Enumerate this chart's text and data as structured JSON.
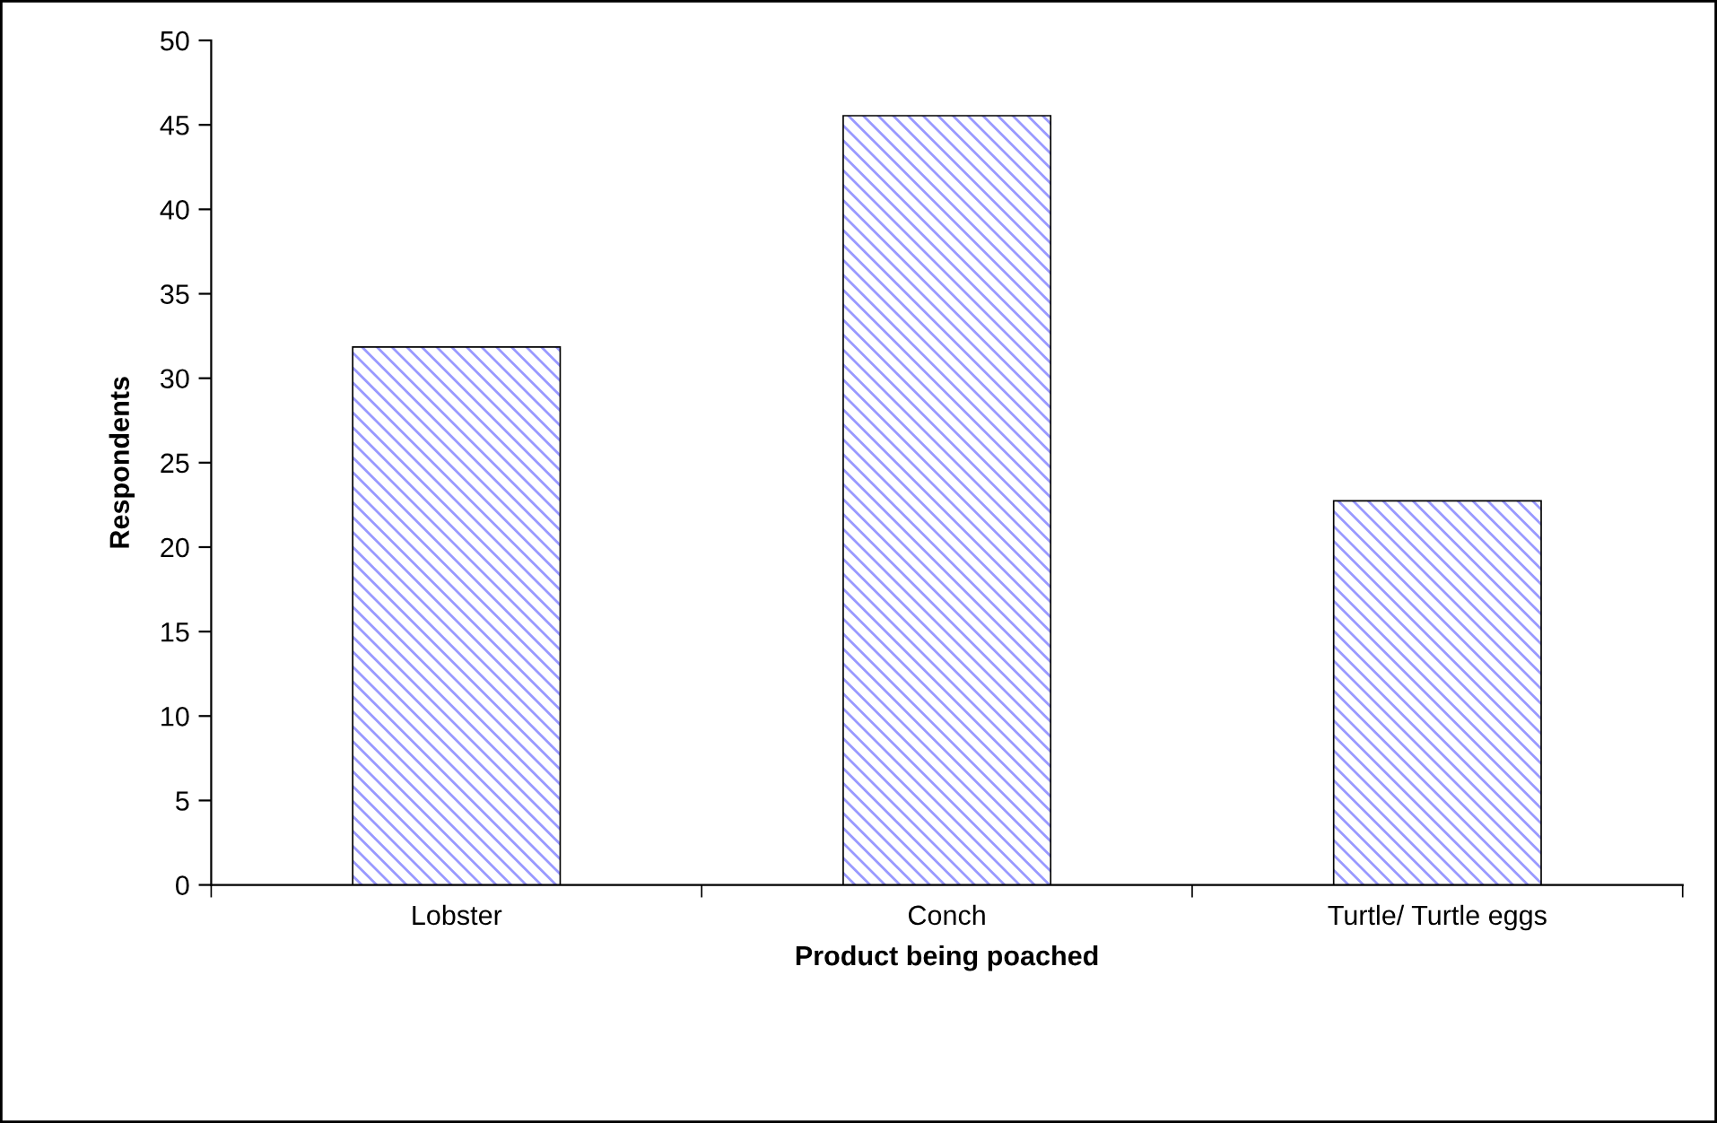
{
  "chart_data": {
    "type": "bar",
    "xlabel": "Product being poached",
    "ylabel": "Respondents",
    "categories": [
      "Lobster",
      "Conch",
      "Turtle/ Turtle eggs"
    ],
    "values": [
      31.8,
      45.5,
      22.7
    ],
    "color": "#9999ff",
    "ylim": [
      0,
      50
    ],
    "yticks": [
      0,
      5,
      10,
      15,
      20,
      25,
      30,
      35,
      40,
      45,
      50
    ],
    "grid": false,
    "legend": false
  }
}
